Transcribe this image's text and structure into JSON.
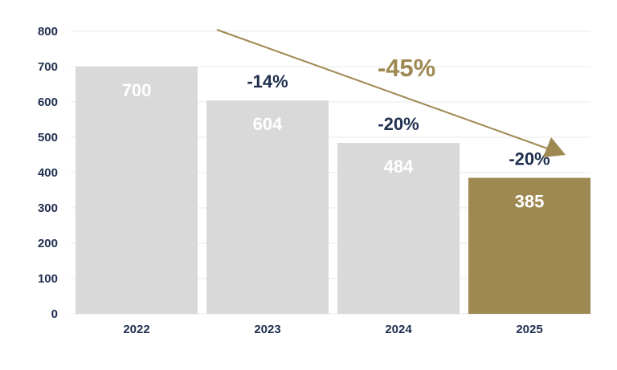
{
  "chart_data": {
    "type": "bar",
    "title": "",
    "xlabel": "",
    "ylabel": "",
    "categories": [
      "2022",
      "2023",
      "2024",
      "2025"
    ],
    "values": [
      700,
      604,
      484,
      385
    ],
    "value_labels": [
      "700",
      "604",
      "484",
      "385"
    ],
    "ylim": [
      0,
      800
    ],
    "yticks": [
      0,
      100,
      200,
      300,
      400,
      500,
      600,
      700,
      800
    ],
    "grid": true,
    "changes": [
      {
        "category": "2023",
        "label": "-14%"
      },
      {
        "category": "2024",
        "label": "-20%"
      },
      {
        "category": "2025",
        "label": "-20%"
      }
    ],
    "total_change": {
      "label": "-45%",
      "from": "2022",
      "to": "2025"
    },
    "highlight_category": "2025"
  },
  "colors": {
    "bar_default": "#d9d9d9",
    "bar_highlight": "#9e8952",
    "text_dark": "#1f2f4f",
    "accent": "#9e8952"
  }
}
